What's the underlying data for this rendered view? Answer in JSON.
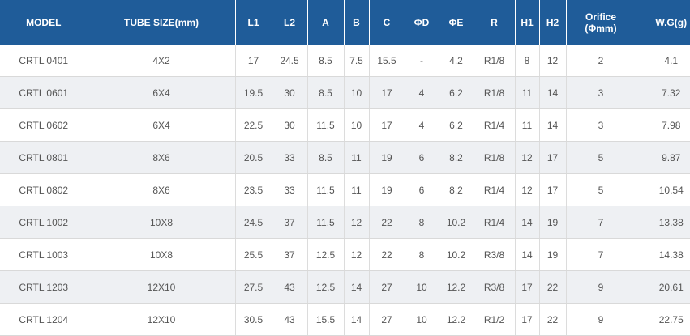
{
  "table": {
    "headers": [
      {
        "label": "MODEL"
      },
      {
        "label": "TUBE SIZE(mm)"
      },
      {
        "label": "L1"
      },
      {
        "label": "L2"
      },
      {
        "label": "A"
      },
      {
        "label": "B"
      },
      {
        "label": "C"
      },
      {
        "label": "ΦD"
      },
      {
        "label": "ΦE"
      },
      {
        "label": "R"
      },
      {
        "label": "H1"
      },
      {
        "label": "H2"
      },
      {
        "label": "Orifice",
        "sub": "(Φmm)"
      },
      {
        "label": "W.G(g)"
      }
    ],
    "rows": [
      [
        "CRTL 0401",
        "4X2",
        "17",
        "24.5",
        "8.5",
        "7.5",
        "15.5",
        "-",
        "4.2",
        "R1/8",
        "8",
        "12",
        "2",
        "4.1"
      ],
      [
        "CRTL 0601",
        "6X4",
        "19.5",
        "30",
        "8.5",
        "10",
        "17",
        "4",
        "6.2",
        "R1/8",
        "11",
        "14",
        "3",
        "7.32"
      ],
      [
        "CRTL 0602",
        "6X4",
        "22.5",
        "30",
        "11.5",
        "10",
        "17",
        "4",
        "6.2",
        "R1/4",
        "11",
        "14",
        "3",
        "7.98"
      ],
      [
        "CRTL 0801",
        "8X6",
        "20.5",
        "33",
        "8.5",
        "11",
        "19",
        "6",
        "8.2",
        "R1/8",
        "12",
        "17",
        "5",
        "9.87"
      ],
      [
        "CRTL 0802",
        "8X6",
        "23.5",
        "33",
        "11.5",
        "11",
        "19",
        "6",
        "8.2",
        "R1/4",
        "12",
        "17",
        "5",
        "10.54"
      ],
      [
        "CRTL 1002",
        "10X8",
        "24.5",
        "37",
        "11.5",
        "12",
        "22",
        "8",
        "10.2",
        "R1/4",
        "14",
        "19",
        "7",
        "13.38"
      ],
      [
        "CRTL 1003",
        "10X8",
        "25.5",
        "37",
        "12.5",
        "12",
        "22",
        "8",
        "10.2",
        "R3/8",
        "14",
        "19",
        "7",
        "14.38"
      ],
      [
        "CRTL 1203",
        "12X10",
        "27.5",
        "43",
        "12.5",
        "14",
        "27",
        "10",
        "12.2",
        "R3/8",
        "17",
        "22",
        "9",
        "20.61"
      ],
      [
        "CRTL 1204",
        "12X10",
        "30.5",
        "43",
        "15.5",
        "14",
        "27",
        "10",
        "12.2",
        "R1/2",
        "17",
        "22",
        "9",
        "22.75"
      ]
    ]
  },
  "colors": {
    "header_bg": "#1f5c99",
    "header_text": "#ffffff",
    "row_alt_bg": "#eef0f3",
    "cell_text": "#555555"
  }
}
